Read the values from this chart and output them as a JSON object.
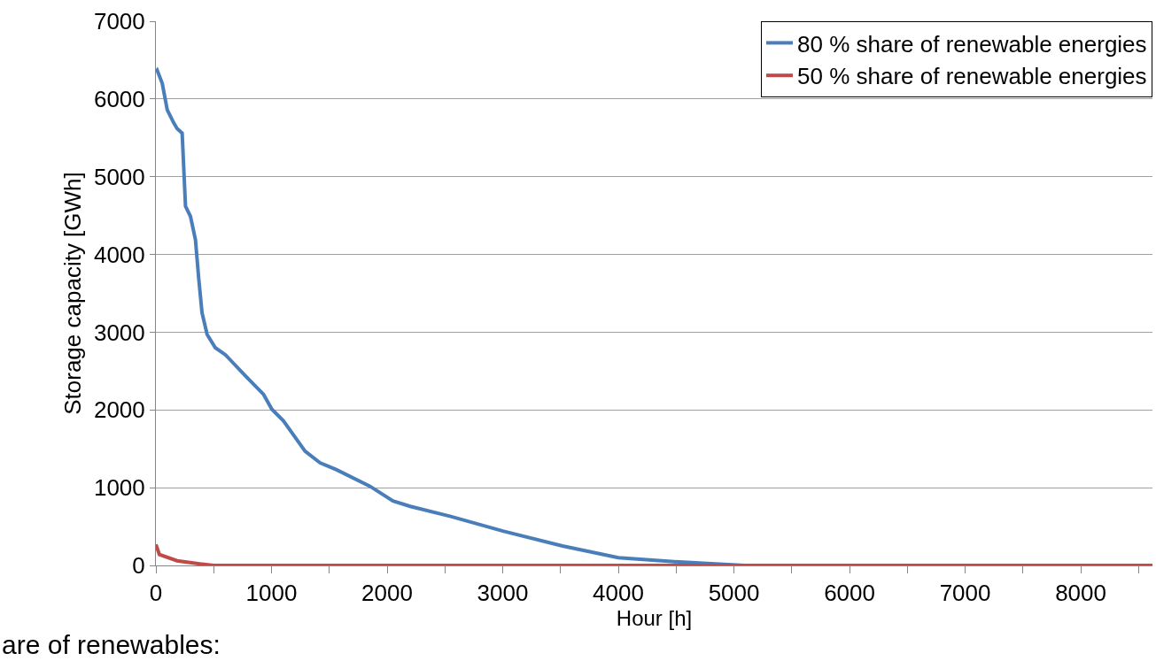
{
  "chart_data": {
    "type": "line",
    "xlabel": "Hour [h]",
    "ylabel": "Storage capacity [GWh]",
    "annotations": [
      "are of renewables:"
    ],
    "series": [
      {
        "name": "80 % share of renewable energies",
        "color": "#4a7ebb",
        "x": [
          0,
          11,
          55,
          98,
          155,
          183,
          227,
          256,
          299,
          342,
          371,
          399,
          443,
          514,
          601,
          773,
          931,
          1003,
          1103,
          1290,
          1420,
          1563,
          1850,
          2051,
          2200,
          2550,
          3008,
          3517,
          4000,
          4458,
          4840,
          5090,
          8620
        ],
        "values": [
          6350,
          6370,
          6200,
          5860,
          5690,
          5620,
          5560,
          4620,
          4490,
          4190,
          3680,
          3250,
          2970,
          2800,
          2710,
          2440,
          2200,
          2010,
          1860,
          1470,
          1320,
          1230,
          1020,
          830,
          760,
          630,
          440,
          250,
          100,
          50,
          20,
          0,
          0
        ]
      },
      {
        "name": "50 % share of renewable energies",
        "color": "#be4b48",
        "x": [
          0,
          30,
          183,
          380,
          500,
          8620
        ],
        "values": [
          270,
          140,
          60,
          20,
          0,
          0
        ]
      }
    ],
    "xlim": [
      0,
      8620
    ],
    "ylim": [
      0,
      7000
    ],
    "xticks": [
      0,
      {
        "value": 500,
        "label": null
      },
      1000,
      {
        "value": 1500,
        "label": null
      },
      2000,
      {
        "value": 2500,
        "label": null
      },
      3000,
      {
        "value": 3500,
        "label": null
      },
      4000,
      {
        "value": 4500,
        "label": null
      },
      5000,
      {
        "value": 5500,
        "label": null
      },
      6000,
      {
        "value": 6500,
        "label": null
      },
      7000,
      {
        "value": 7500,
        "label": null
      },
      8000,
      {
        "value": 8500,
        "label": null
      }
    ],
    "yticks": [
      0,
      1000,
      2000,
      3000,
      4000,
      5000,
      6000,
      7000
    ],
    "grid": "y",
    "legend": "top right",
    "marker": "none",
    "line_style": "solid"
  }
}
